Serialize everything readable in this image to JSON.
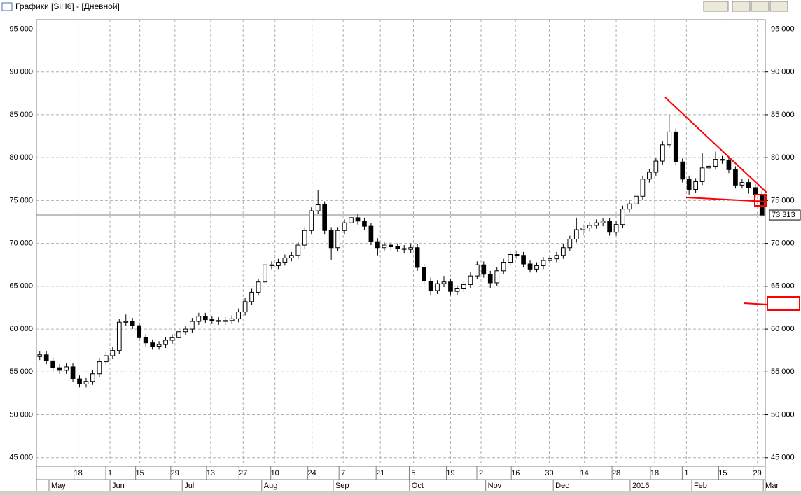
{
  "window_title": "Графики [SiH6] - [Дневной]",
  "chart_data": {
    "type": "candlestick",
    "ylim": [
      44000,
      96100
    ],
    "yticks": [
      {
        "value": 45000,
        "label": "45 000"
      },
      {
        "value": 50000,
        "label": "50 000"
      },
      {
        "value": 55000,
        "label": "55 000"
      },
      {
        "value": 60000,
        "label": "60 000"
      },
      {
        "value": 65000,
        "label": "65 000"
      },
      {
        "value": 70000,
        "label": "70 000"
      },
      {
        "value": 75000,
        "label": "75 000"
      },
      {
        "value": 80000,
        "label": "80 000"
      },
      {
        "value": 85000,
        "label": "85 000"
      },
      {
        "value": 90000,
        "label": "90 000"
      },
      {
        "value": 95000,
        "label": "95 000"
      }
    ],
    "xlim": [
      0,
      110
    ],
    "xticks": [
      {
        "value": 6.3,
        "label": "18"
      },
      {
        "value": 11.1,
        "label": "1"
      },
      {
        "value": 15.6,
        "label": "15"
      },
      {
        "value": 20.9,
        "label": "29"
      },
      {
        "value": 26.3,
        "label": "13"
      },
      {
        "value": 31.2,
        "label": "27"
      },
      {
        "value": 36.0,
        "label": "10"
      },
      {
        "value": 41.6,
        "label": "24"
      },
      {
        "value": 46.3,
        "label": "7"
      },
      {
        "value": 51.9,
        "label": "21"
      },
      {
        "value": 56.9,
        "label": "5"
      },
      {
        "value": 62.5,
        "label": "19"
      },
      {
        "value": 67.1,
        "label": "2"
      },
      {
        "value": 72.3,
        "label": "16"
      },
      {
        "value": 77.4,
        "label": "30"
      },
      {
        "value": 82.7,
        "label": "14"
      },
      {
        "value": 87.5,
        "label": "28"
      },
      {
        "value": 93.3,
        "label": "18"
      },
      {
        "value": 98.1,
        "label": "1"
      },
      {
        "value": 103.6,
        "label": "15"
      },
      {
        "value": 108.8,
        "label": "29"
      }
    ],
    "month_ticks": [
      {
        "value": 1.9,
        "label": "May"
      },
      {
        "value": 11.1,
        "label": "Jun"
      },
      {
        "value": 22.0,
        "label": "Jul"
      },
      {
        "value": 34.0,
        "label": "Aug"
      },
      {
        "value": 44.8,
        "label": "Sep"
      },
      {
        "value": 56.3,
        "label": "Oct"
      },
      {
        "value": 67.8,
        "label": "Nov"
      },
      {
        "value": 78.0,
        "label": "Dec"
      },
      {
        "value": 89.6,
        "label": "2016"
      },
      {
        "value": 98.9,
        "label": "Feb"
      },
      {
        "value": 109.7,
        "label": "Mar"
      }
    ],
    "last_price": {
      "value": 73313,
      "label": "73 313"
    },
    "grid": true,
    "up_color": "#ffffff",
    "down_color": "#000000",
    "ohlc": [
      [
        56800,
        57400,
        56400,
        57000
      ],
      [
        57000,
        57400,
        55900,
        56300
      ],
      [
        56300,
        56700,
        55100,
        55500
      ],
      [
        55500,
        55900,
        54800,
        55200
      ],
      [
        55200,
        56000,
        54800,
        55600
      ],
      [
        55600,
        56000,
        53800,
        54200
      ],
      [
        54200,
        54600,
        53200,
        53600
      ],
      [
        53600,
        54300,
        53200,
        53900
      ],
      [
        53900,
        55200,
        53500,
        54800
      ],
      [
        54800,
        56600,
        54400,
        56200
      ],
      [
        56200,
        57300,
        55800,
        56900
      ],
      [
        56900,
        57900,
        56500,
        57500
      ],
      [
        57500,
        61200,
        57100,
        60800
      ],
      [
        60800,
        61700,
        60400,
        60900
      ],
      [
        60900,
        61300,
        60000,
        60400
      ],
      [
        60400,
        60800,
        58600,
        59000
      ],
      [
        59000,
        59400,
        58000,
        58400
      ],
      [
        58400,
        58800,
        57600,
        58000
      ],
      [
        58000,
        58600,
        57600,
        58200
      ],
      [
        58200,
        59100,
        57800,
        58700
      ],
      [
        58700,
        59400,
        58300,
        59000
      ],
      [
        59000,
        60100,
        58600,
        59700
      ],
      [
        59700,
        60400,
        59300,
        60000
      ],
      [
        60000,
        61300,
        59600,
        60900
      ],
      [
        60900,
        61900,
        60500,
        61500
      ],
      [
        61500,
        61900,
        60700,
        61100
      ],
      [
        61100,
        61500,
        60600,
        61000
      ],
      [
        61000,
        61400,
        60500,
        60900
      ],
      [
        60900,
        61400,
        60500,
        61000
      ],
      [
        61000,
        61600,
        60600,
        61200
      ],
      [
        61200,
        62400,
        60800,
        62000
      ],
      [
        62000,
        63600,
        61600,
        63200
      ],
      [
        63200,
        64700,
        62800,
        64300
      ],
      [
        64300,
        65900,
        63900,
        65500
      ],
      [
        65500,
        67900,
        65100,
        67500
      ],
      [
        67500,
        67900,
        67000,
        67400
      ],
      [
        67400,
        68200,
        67000,
        67800
      ],
      [
        67800,
        68700,
        67400,
        68300
      ],
      [
        68300,
        69000,
        67900,
        68600
      ],
      [
        68600,
        70200,
        68200,
        69800
      ],
      [
        69800,
        71900,
        69400,
        71500
      ],
      [
        71500,
        74200,
        71100,
        73800
      ],
      [
        73800,
        76200,
        73400,
        74500
      ],
      [
        74500,
        74900,
        71100,
        71500
      ],
      [
        71500,
        71900,
        68100,
        69500
      ],
      [
        69500,
        71900,
        69100,
        71500
      ],
      [
        71500,
        72800,
        71100,
        72400
      ],
      [
        72400,
        73400,
        72000,
        73000
      ],
      [
        73000,
        73400,
        72200,
        72600
      ],
      [
        72600,
        73000,
        71600,
        72000
      ],
      [
        72000,
        72400,
        69800,
        70200
      ],
      [
        70200,
        70600,
        68600,
        69500
      ],
      [
        69500,
        70200,
        69100,
        69800
      ],
      [
        69800,
        70200,
        69200,
        69600
      ],
      [
        69600,
        70000,
        69000,
        69400
      ],
      [
        69400,
        69800,
        68900,
        69300
      ],
      [
        69300,
        70000,
        68900,
        69500
      ],
      [
        69500,
        69900,
        66800,
        67200
      ],
      [
        67200,
        67600,
        65200,
        65600
      ],
      [
        65600,
        66000,
        63900,
        64500
      ],
      [
        64500,
        65700,
        64100,
        65300
      ],
      [
        65300,
        66200,
        64900,
        65500
      ],
      [
        65500,
        65900,
        63900,
        64400
      ],
      [
        64400,
        65100,
        64000,
        64700
      ],
      [
        64700,
        65600,
        64300,
        65200
      ],
      [
        65200,
        66600,
        64800,
        66200
      ],
      [
        66200,
        67900,
        65800,
        67500
      ],
      [
        67500,
        67900,
        66000,
        66400
      ],
      [
        66400,
        66800,
        64800,
        65400
      ],
      [
        65400,
        67200,
        65000,
        66800
      ],
      [
        66800,
        68200,
        66400,
        67800
      ],
      [
        67800,
        69100,
        67400,
        68700
      ],
      [
        68700,
        69100,
        68200,
        68600
      ],
      [
        68600,
        69000,
        67200,
        67600
      ],
      [
        67600,
        68000,
        66600,
        67000
      ],
      [
        67000,
        67800,
        66600,
        67400
      ],
      [
        67400,
        68400,
        67000,
        68000
      ],
      [
        68000,
        68600,
        67600,
        68200
      ],
      [
        68200,
        69000,
        67800,
        68600
      ],
      [
        68600,
        69900,
        68200,
        69500
      ],
      [
        69500,
        70900,
        69100,
        70500
      ],
      [
        70500,
        73000,
        70100,
        71600
      ],
      [
        71600,
        72200,
        70900,
        71800
      ],
      [
        71800,
        72500,
        71400,
        72100
      ],
      [
        72100,
        72800,
        71700,
        72400
      ],
      [
        72400,
        73000,
        72000,
        72600
      ],
      [
        72600,
        73000,
        70900,
        71300
      ],
      [
        71300,
        72600,
        70900,
        72200
      ],
      [
        72200,
        74400,
        71800,
        74000
      ],
      [
        74000,
        75000,
        73600,
        74600
      ],
      [
        74600,
        75900,
        74200,
        75500
      ],
      [
        75500,
        77900,
        75100,
        77500
      ],
      [
        77500,
        78700,
        77100,
        78300
      ],
      [
        78300,
        80000,
        77900,
        79600
      ],
      [
        79600,
        81900,
        79200,
        81500
      ],
      [
        81500,
        85000,
        81100,
        83000
      ],
      [
        83000,
        83400,
        79100,
        79500
      ],
      [
        79500,
        79900,
        77100,
        77500
      ],
      [
        77500,
        77900,
        75700,
        76300
      ],
      [
        76300,
        77600,
        75900,
        77200
      ],
      [
        77200,
        80500,
        76800,
        78800
      ],
      [
        78800,
        79400,
        78400,
        79000
      ],
      [
        79000,
        80700,
        78600,
        79800
      ],
      [
        79800,
        80200,
        79300,
        79700
      ],
      [
        79700,
        80100,
        78200,
        78600
      ],
      [
        78600,
        79000,
        76400,
        76800
      ],
      [
        76800,
        77500,
        76400,
        77100
      ],
      [
        77100,
        77500,
        75800,
        76500
      ],
      [
        76500,
        76900,
        75300,
        75700
      ],
      [
        75700,
        76100,
        73100,
        73300
      ]
    ]
  }
}
